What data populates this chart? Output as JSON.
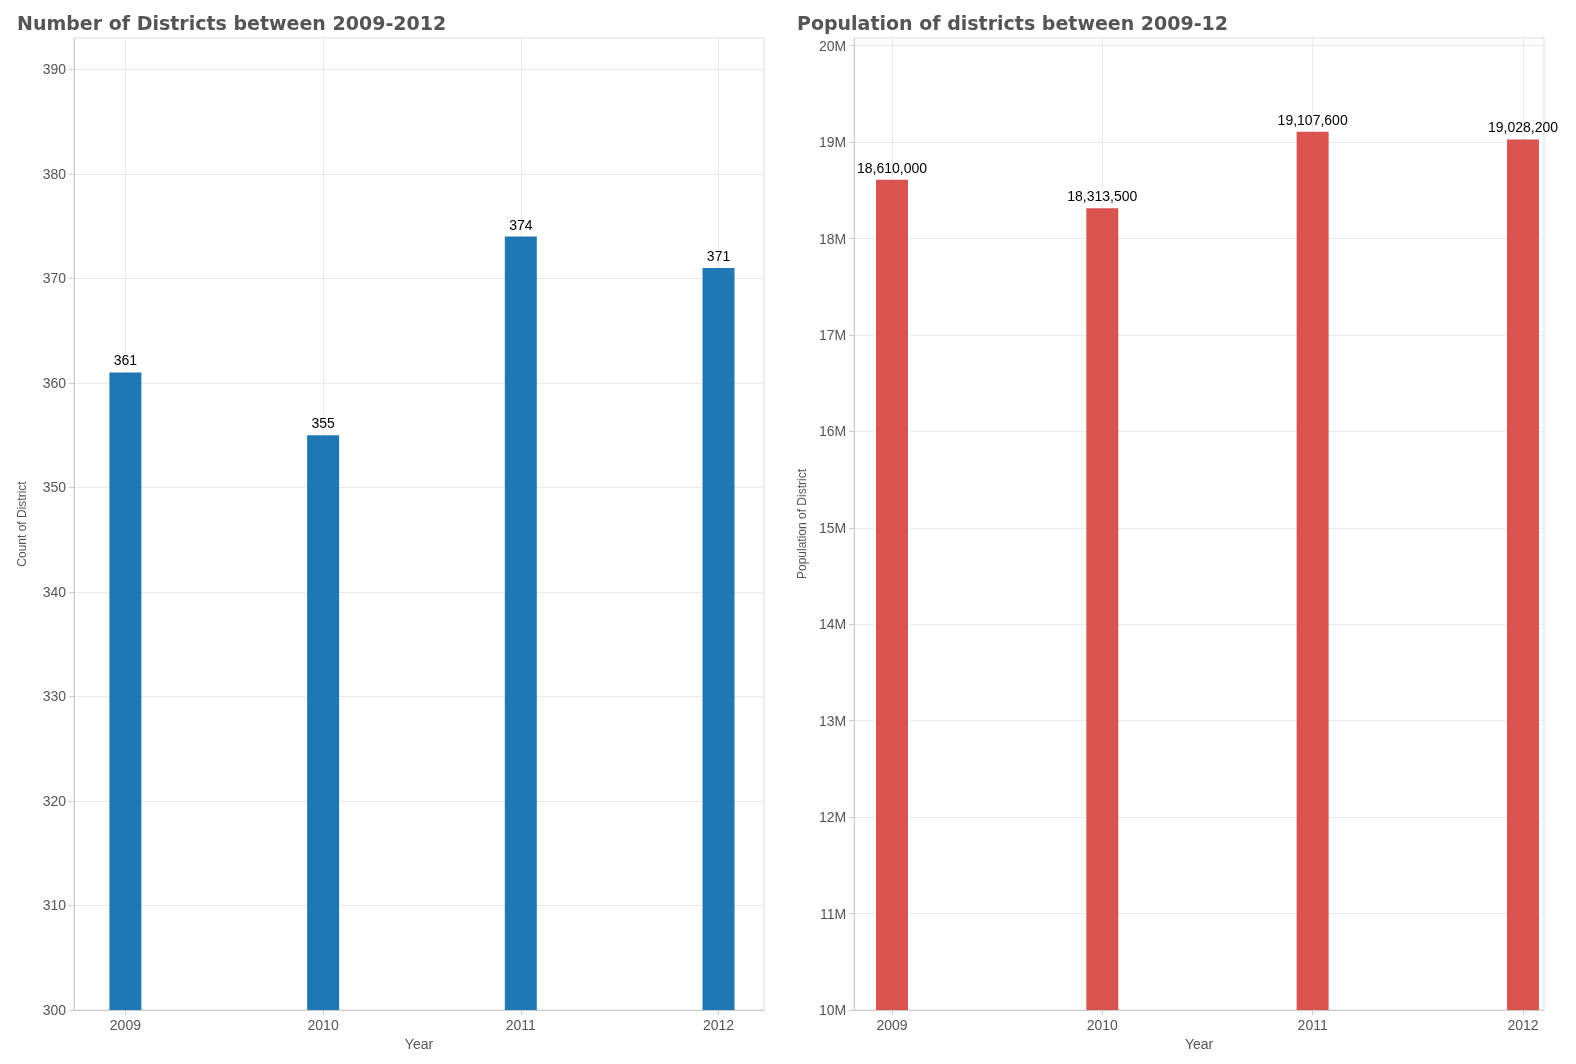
{
  "chart_data": [
    {
      "type": "bar",
      "title": "Number of Districts between 2009-2012",
      "xlabel": "Year",
      "ylabel": "Count of District",
      "x": [
        2009,
        2010,
        2011,
        2012
      ],
      "values": [
        361,
        355,
        374,
        371
      ],
      "color": "#1f77b4",
      "xlim": [
        2008.74,
        2012.23
      ],
      "xticks": [
        2009,
        2010,
        2011,
        2012
      ],
      "ylim": [
        300,
        393
      ],
      "yticks": [
        300,
        310,
        320,
        330,
        340,
        350,
        360,
        370,
        380,
        390
      ],
      "grid": true,
      "data_labels": true
    },
    {
      "type": "bar",
      "title": "Population of districts between 2009-12",
      "xlabel": "Year",
      "ylabel": "Population of District",
      "x": [
        2009,
        2010,
        2011,
        2012
      ],
      "values": [
        18610000,
        18313500,
        19107600,
        19028200
      ],
      "value_labels": [
        "18,610,000",
        "18,313,500",
        "19,107,600",
        "19,028,200"
      ],
      "color": "#d9534f",
      "xlim": [
        2008.82,
        2012.1
      ],
      "xticks": [
        2009,
        2010,
        2011,
        2012
      ],
      "ylim": [
        10000000,
        20080000
      ],
      "yticks": [
        {
          "value": 10000000,
          "label": "10M"
        },
        {
          "value": 11000000,
          "label": "11M"
        },
        {
          "value": 12000000,
          "label": "12M"
        },
        {
          "value": 13000000,
          "label": "13M"
        },
        {
          "value": 14000000,
          "label": "14M"
        },
        {
          "value": 15000000,
          "label": "15M"
        },
        {
          "value": 16000000,
          "label": "16M"
        },
        {
          "value": 17000000,
          "label": "17M"
        },
        {
          "value": 18000000,
          "label": "18M"
        },
        {
          "value": 19000000,
          "label": "19M"
        },
        {
          "value": 20000000,
          "label": "20M"
        }
      ],
      "grid": true
    }
  ]
}
